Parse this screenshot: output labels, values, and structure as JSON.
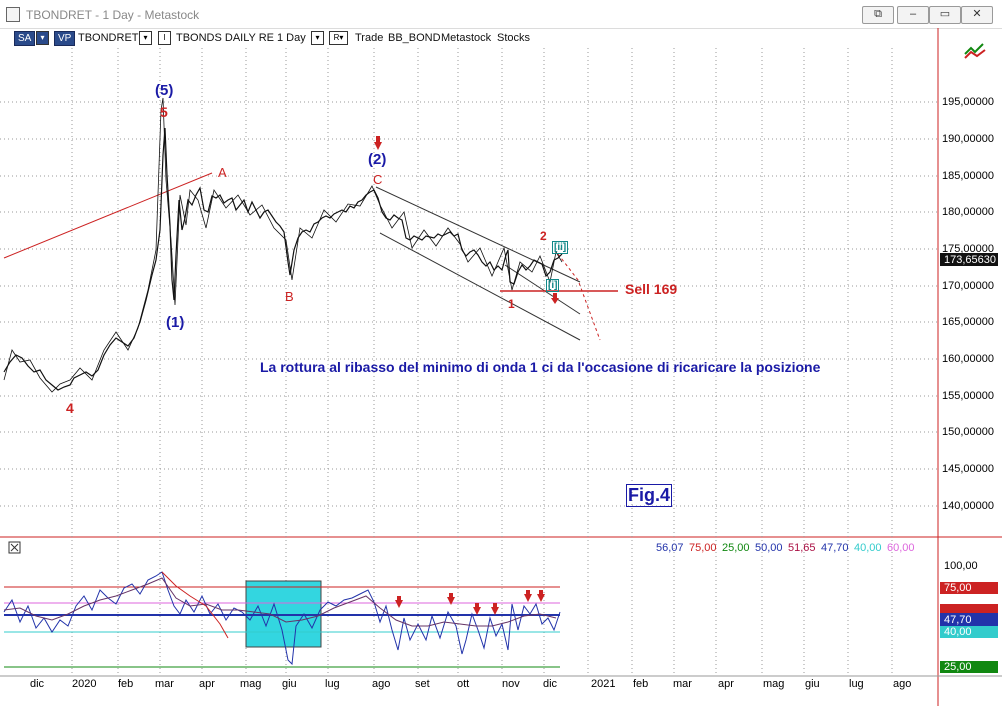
{
  "window": {
    "title": "TBONDRET - 1 Day - Metastock",
    "buttons": [
      "⧉",
      "–",
      "▭",
      "✕"
    ]
  },
  "toolbar": {
    "sa": "SA",
    "vp": "VP",
    "symbol": "TBONDRET",
    "mode": "I",
    "series": "TBONDS DAILY RE",
    "period": "1 Day",
    "r": "R",
    "trade": "Trade",
    "account": "BB_BOND",
    "source": "Metastock",
    "type": "Stocks"
  },
  "price_axis": [
    "195,00000",
    "190,00000",
    "185,00000",
    "180,00000",
    "175,00000",
    "170,00000",
    "165,00000",
    "160,00000",
    "155,00000",
    "150,00000",
    "145,00000",
    "140,00000"
  ],
  "last_price": "173,65630",
  "waves": {
    "w5p": "(5)",
    "w5": "5",
    "wA": "A",
    "wB": "B",
    "w2p": "(2)",
    "wC": "C",
    "w1p": "(1)",
    "w4": "4",
    "w1": "1",
    "w2": "2",
    "wii": "[ii]",
    "wi": "[i]"
  },
  "annotations": {
    "sell": "Sell 169",
    "comment": "La rottura al ribasso del minimo di onda 1 ci da l'occasione di ricaricare la posizione",
    "fig": "Fig.4"
  },
  "indicator": {
    "values": [
      {
        "text": "56,07",
        "color": "#2233aa"
      },
      {
        "text": "75,00",
        "color": "#cc2222"
      },
      {
        "text": "25,00",
        "color": "#118811"
      },
      {
        "text": "50,00",
        "color": "#2233aa"
      },
      {
        "text": "51,65",
        "color": "#aa1144"
      },
      {
        "text": "47,70",
        "color": "#2233aa"
      },
      {
        "text": "40,00",
        "color": "#33cccc"
      },
      {
        "text": "60,00",
        "color": "#dd66dd"
      }
    ],
    "axis": [
      "100,00",
      "75,00",
      "47,70",
      "40,00",
      "25,00"
    ]
  },
  "time_axis": [
    "dic",
    "2020",
    "feb",
    "mar",
    "apr",
    "mag",
    "giu",
    "lug",
    "ago",
    "set",
    "ott",
    "nov",
    "dic",
    "2021",
    "feb",
    "mar",
    "apr",
    "mag",
    "giu",
    "lug",
    "ago"
  ]
}
